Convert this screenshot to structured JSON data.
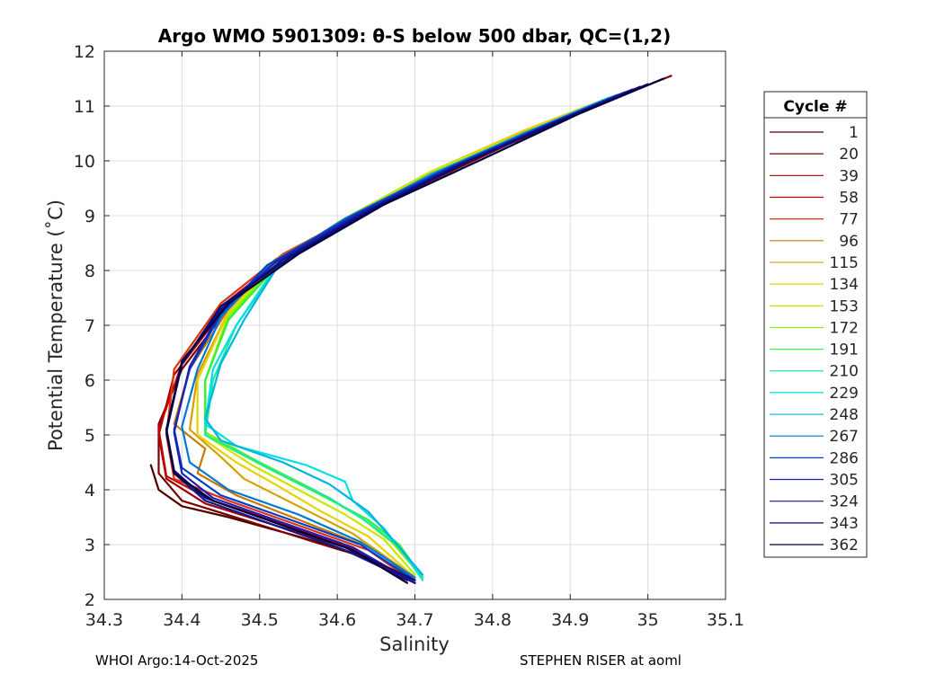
{
  "chart_data": {
    "type": "line",
    "title": "Argo WMO 5901309: θ-S below 500 dbar,  QC=(1,2)",
    "xlabel": "Salinity",
    "ylabel": "Potential Temperature (˚C)",
    "xlim": [
      34.3,
      35.1
    ],
    "ylim": [
      2,
      12
    ],
    "xticks": [
      "34.3",
      "34.4",
      "34.5",
      "34.6",
      "34.7",
      "34.8",
      "34.9",
      "35",
      "35.1"
    ],
    "yticks": [
      "2",
      "3",
      "4",
      "5",
      "6",
      "7",
      "8",
      "9",
      "10",
      "11",
      "12"
    ],
    "grid": true,
    "legend_title": "Cycle #",
    "legend_placement": "right-outside",
    "series": [
      {
        "name": "1",
        "color": "#500000",
        "points": [
          [
            34.36,
            4.45
          ],
          [
            34.37,
            4.0
          ],
          [
            34.4,
            3.7
          ],
          [
            34.46,
            3.5
          ],
          [
            34.55,
            3.15
          ],
          [
            34.62,
            2.85
          ],
          [
            34.69,
            2.35
          ]
        ]
      },
      {
        "name": "20",
        "color": "#7a0000",
        "points": [
          [
            35.03,
            11.55
          ],
          [
            34.95,
            11.1
          ],
          [
            34.82,
            10.3
          ],
          [
            34.7,
            9.5
          ],
          [
            34.57,
            8.6
          ],
          [
            34.47,
            7.5
          ],
          [
            34.4,
            6.2
          ],
          [
            34.37,
            5.2
          ],
          [
            34.37,
            4.3
          ],
          [
            34.4,
            3.8
          ],
          [
            34.48,
            3.45
          ],
          [
            34.57,
            3.05
          ],
          [
            34.64,
            2.75
          ],
          [
            34.7,
            2.3
          ]
        ]
      },
      {
        "name": "39",
        "color": "#a00000",
        "points": [
          [
            34.99,
            11.35
          ],
          [
            34.9,
            10.85
          ],
          [
            34.78,
            10.1
          ],
          [
            34.66,
            9.2
          ],
          [
            34.55,
            8.4
          ],
          [
            34.46,
            7.4
          ],
          [
            34.39,
            6.1
          ],
          [
            34.37,
            5.0
          ],
          [
            34.38,
            4.2
          ],
          [
            34.43,
            3.75
          ],
          [
            34.52,
            3.35
          ],
          [
            34.61,
            2.95
          ],
          [
            34.69,
            2.4
          ]
        ]
      },
      {
        "name": "58",
        "color": "#c80000",
        "points": [
          [
            34.98,
            11.3
          ],
          [
            34.88,
            10.75
          ],
          [
            34.76,
            10.0
          ],
          [
            34.64,
            9.1
          ],
          [
            34.54,
            8.35
          ],
          [
            34.46,
            7.45
          ],
          [
            34.4,
            6.3
          ],
          [
            34.37,
            5.1
          ],
          [
            34.38,
            4.25
          ],
          [
            34.44,
            3.8
          ],
          [
            34.53,
            3.38
          ],
          [
            34.62,
            2.92
          ],
          [
            34.7,
            2.3
          ]
        ]
      },
      {
        "name": "77",
        "color": "#e03010",
        "points": [
          [
            34.97,
            11.25
          ],
          [
            34.87,
            10.7
          ],
          [
            34.75,
            9.95
          ],
          [
            34.63,
            9.05
          ],
          [
            34.53,
            8.3
          ],
          [
            34.45,
            7.4
          ],
          [
            34.39,
            6.2
          ],
          [
            34.38,
            5.0
          ],
          [
            34.39,
            4.2
          ],
          [
            34.46,
            3.8
          ],
          [
            34.55,
            3.35
          ],
          [
            34.64,
            2.9
          ],
          [
            34.7,
            2.3
          ]
        ]
      },
      {
        "name": "96",
        "color": "#c87800",
        "points": [
          [
            34.96,
            11.2
          ],
          [
            34.85,
            10.6
          ],
          [
            34.73,
            9.85
          ],
          [
            34.62,
            9.0
          ],
          [
            34.52,
            8.2
          ],
          [
            34.46,
            7.3
          ],
          [
            34.41,
            6.2
          ],
          [
            34.39,
            5.2
          ],
          [
            34.43,
            4.75
          ],
          [
            34.42,
            4.3
          ],
          [
            34.47,
            3.9
          ],
          [
            34.56,
            3.4
          ],
          [
            34.65,
            2.9
          ],
          [
            34.7,
            2.35
          ]
        ]
      },
      {
        "name": "115",
        "color": "#d2a000",
        "points": [
          [
            34.95,
            11.15
          ],
          [
            34.84,
            10.55
          ],
          [
            34.72,
            9.8
          ],
          [
            34.61,
            8.95
          ],
          [
            34.52,
            8.15
          ],
          [
            34.46,
            7.25
          ],
          [
            34.42,
            6.1
          ],
          [
            34.41,
            5.1
          ],
          [
            34.45,
            4.6
          ],
          [
            34.48,
            4.2
          ],
          [
            34.55,
            3.7
          ],
          [
            34.62,
            3.2
          ],
          [
            34.7,
            2.4
          ]
        ]
      },
      {
        "name": "134",
        "color": "#e6d200",
        "points": [
          [
            34.95,
            11.15
          ],
          [
            34.84,
            10.55
          ],
          [
            34.72,
            9.8
          ],
          [
            34.61,
            8.95
          ],
          [
            34.52,
            8.15
          ],
          [
            34.46,
            7.25
          ],
          [
            34.42,
            6.0
          ],
          [
            34.42,
            5.0
          ],
          [
            34.47,
            4.5
          ],
          [
            34.52,
            4.1
          ],
          [
            34.58,
            3.6
          ],
          [
            34.64,
            3.15
          ],
          [
            34.7,
            2.4
          ]
        ]
      },
      {
        "name": "153",
        "color": "#c8e600",
        "points": [
          [
            34.95,
            11.15
          ],
          [
            34.84,
            10.5
          ],
          [
            34.72,
            9.8
          ],
          [
            34.61,
            8.95
          ],
          [
            34.52,
            8.15
          ],
          [
            34.46,
            7.2
          ],
          [
            34.43,
            6.0
          ],
          [
            34.43,
            5.0
          ],
          [
            34.49,
            4.45
          ],
          [
            34.55,
            4.0
          ],
          [
            34.61,
            3.55
          ],
          [
            34.66,
            3.1
          ],
          [
            34.7,
            2.45
          ]
        ]
      },
      {
        "name": "172",
        "color": "#80f000",
        "points": [
          [
            34.95,
            11.15
          ],
          [
            34.84,
            10.5
          ],
          [
            34.72,
            9.75
          ],
          [
            34.61,
            8.9
          ],
          [
            34.52,
            8.1
          ],
          [
            34.46,
            7.15
          ],
          [
            34.43,
            6.0
          ],
          [
            34.43,
            5.05
          ],
          [
            34.5,
            4.5
          ],
          [
            34.57,
            4.0
          ],
          [
            34.63,
            3.5
          ],
          [
            34.67,
            3.05
          ],
          [
            34.71,
            2.4
          ]
        ]
      },
      {
        "name": "191",
        "color": "#30f040",
        "points": [
          [
            34.95,
            11.15
          ],
          [
            34.84,
            10.5
          ],
          [
            34.72,
            9.75
          ],
          [
            34.61,
            8.9
          ],
          [
            34.52,
            8.05
          ],
          [
            34.46,
            7.1
          ],
          [
            34.43,
            6.0
          ],
          [
            34.43,
            5.0
          ],
          [
            34.51,
            4.4
          ],
          [
            34.58,
            3.9
          ],
          [
            34.64,
            3.45
          ],
          [
            34.68,
            3.0
          ],
          [
            34.71,
            2.4
          ]
        ]
      },
      {
        "name": "210",
        "color": "#20e8a0",
        "points": [
          [
            34.95,
            11.15
          ],
          [
            34.84,
            10.5
          ],
          [
            34.72,
            9.75
          ],
          [
            34.61,
            8.9
          ],
          [
            34.52,
            8.05
          ],
          [
            34.47,
            7.0
          ],
          [
            34.44,
            6.0
          ],
          [
            34.43,
            5.0
          ],
          [
            34.52,
            4.35
          ],
          [
            34.59,
            3.85
          ],
          [
            34.64,
            3.4
          ],
          [
            34.68,
            2.95
          ],
          [
            34.71,
            2.35
          ]
        ]
      },
      {
        "name": "229",
        "color": "#00e0e0",
        "points": [
          [
            34.95,
            11.15
          ],
          [
            34.84,
            10.5
          ],
          [
            34.72,
            9.75
          ],
          [
            34.61,
            8.9
          ],
          [
            34.52,
            8.0
          ],
          [
            34.47,
            7.0
          ],
          [
            34.44,
            6.2
          ],
          [
            34.43,
            5.2
          ],
          [
            34.47,
            4.8
          ],
          [
            34.56,
            4.45
          ],
          [
            34.61,
            4.15
          ],
          [
            34.62,
            3.8
          ],
          [
            34.66,
            3.3
          ],
          [
            34.71,
            2.4
          ]
        ]
      },
      {
        "name": "248",
        "color": "#00b4e0",
        "points": [
          [
            34.95,
            11.15
          ],
          [
            34.84,
            10.5
          ],
          [
            34.72,
            9.75
          ],
          [
            34.61,
            8.9
          ],
          [
            34.52,
            8.0
          ],
          [
            34.48,
            7.1
          ],
          [
            34.45,
            6.3
          ],
          [
            34.43,
            5.3
          ],
          [
            34.45,
            4.9
          ],
          [
            34.53,
            4.5
          ],
          [
            34.59,
            4.1
          ],
          [
            34.64,
            3.6
          ],
          [
            34.71,
            2.45
          ]
        ]
      },
      {
        "name": "267",
        "color": "#0078d2",
        "points": [
          [
            34.96,
            11.2
          ],
          [
            34.85,
            10.55
          ],
          [
            34.73,
            9.8
          ],
          [
            34.61,
            8.95
          ],
          [
            34.51,
            8.05
          ],
          [
            34.45,
            7.15
          ],
          [
            34.42,
            6.2
          ],
          [
            34.4,
            5.15
          ],
          [
            34.41,
            4.5
          ],
          [
            34.46,
            4.0
          ],
          [
            34.55,
            3.55
          ],
          [
            34.63,
            3.05
          ],
          [
            34.7,
            2.4
          ]
        ]
      },
      {
        "name": "286",
        "color": "#0040c8",
        "points": [
          [
            34.97,
            11.25
          ],
          [
            34.86,
            10.6
          ],
          [
            34.74,
            9.85
          ],
          [
            34.62,
            9.0
          ],
          [
            34.51,
            8.1
          ],
          [
            34.45,
            7.2
          ],
          [
            34.41,
            6.2
          ],
          [
            34.39,
            5.1
          ],
          [
            34.4,
            4.4
          ],
          [
            34.45,
            3.9
          ],
          [
            34.54,
            3.45
          ],
          [
            34.63,
            3.0
          ],
          [
            34.7,
            2.35
          ]
        ]
      },
      {
        "name": "305",
        "color": "#1e1eb4",
        "points": [
          [
            34.98,
            11.3
          ],
          [
            34.87,
            10.65
          ],
          [
            34.75,
            9.9
          ],
          [
            34.63,
            9.05
          ],
          [
            34.52,
            8.15
          ],
          [
            34.45,
            7.25
          ],
          [
            34.41,
            6.25
          ],
          [
            34.39,
            5.05
          ],
          [
            34.4,
            4.3
          ],
          [
            34.44,
            3.85
          ],
          [
            34.53,
            3.4
          ],
          [
            34.62,
            2.95
          ],
          [
            34.7,
            2.3
          ]
        ]
      },
      {
        "name": "324",
        "color": "#14148c",
        "points": [
          [
            34.99,
            11.35
          ],
          [
            34.88,
            10.7
          ],
          [
            34.76,
            9.95
          ],
          [
            34.64,
            9.1
          ],
          [
            34.53,
            8.2
          ],
          [
            34.45,
            7.3
          ],
          [
            34.4,
            6.3
          ],
          [
            34.38,
            5.05
          ],
          [
            34.39,
            4.3
          ],
          [
            34.43,
            3.8
          ],
          [
            34.52,
            3.35
          ],
          [
            34.61,
            2.9
          ],
          [
            34.7,
            2.3
          ]
        ]
      },
      {
        "name": "343",
        "color": "#0a0a78",
        "points": [
          [
            35.0,
            11.4
          ],
          [
            34.89,
            10.75
          ],
          [
            34.77,
            10.0
          ],
          [
            34.65,
            9.15
          ],
          [
            34.54,
            8.25
          ],
          [
            34.45,
            7.35
          ],
          [
            34.4,
            6.3
          ],
          [
            34.38,
            5.1
          ],
          [
            34.39,
            4.35
          ],
          [
            34.43,
            3.85
          ],
          [
            34.52,
            3.4
          ],
          [
            34.61,
            2.95
          ],
          [
            34.7,
            2.35
          ]
        ]
      },
      {
        "name": "362",
        "color": "#00003c",
        "points": [
          [
            35.02,
            11.5
          ],
          [
            34.91,
            10.85
          ],
          [
            34.79,
            10.05
          ],
          [
            34.66,
            9.2
          ],
          [
            34.55,
            8.3
          ],
          [
            34.46,
            7.4
          ],
          [
            34.4,
            6.35
          ],
          [
            34.38,
            5.1
          ],
          [
            34.39,
            4.3
          ],
          [
            34.44,
            3.8
          ],
          [
            34.53,
            3.35
          ],
          [
            34.62,
            2.9
          ],
          [
            34.69,
            2.3
          ]
        ]
      }
    ]
  },
  "footer": {
    "left": "WHOI Argo:14-Oct-2025",
    "right": "STEPHEN RISER at aoml"
  }
}
